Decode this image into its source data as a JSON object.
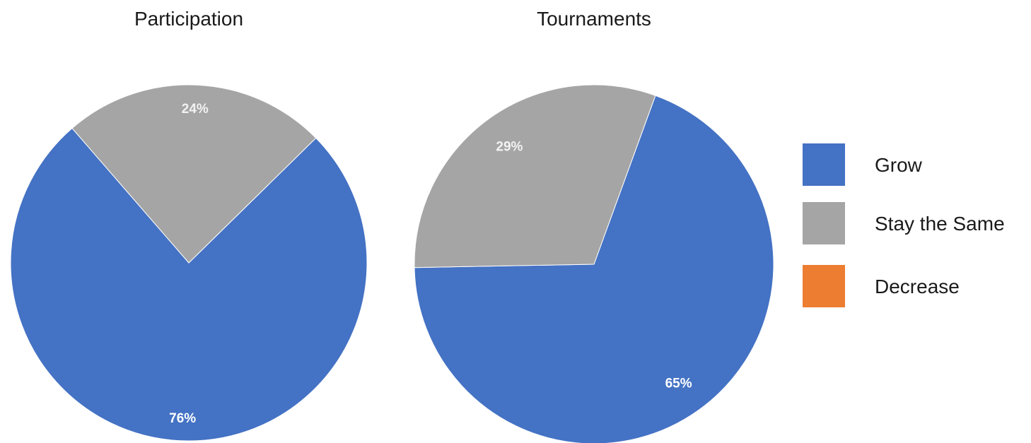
{
  "chart_data": [
    {
      "type": "pie",
      "title": "Participation",
      "categories": [
        "Grow",
        "Stay the Same",
        "Decrease"
      ],
      "values": [
        76,
        24,
        0
      ],
      "labels": [
        "76%",
        "24%",
        ""
      ]
    },
    {
      "type": "pie",
      "title": "Tournaments",
      "categories": [
        "Grow",
        "Stay the Same",
        "Decrease"
      ],
      "values": [
        65,
        29,
        0
      ],
      "labels": [
        "65%",
        "29%",
        ""
      ]
    }
  ],
  "legend": {
    "placement": "right",
    "items": [
      {
        "label": "Grow",
        "color": "#4472C4"
      },
      {
        "label": "Stay the Same",
        "color": "#A5A5A5"
      },
      {
        "label": "Decrease",
        "color": "#ED7D31"
      }
    ]
  },
  "colors": {
    "Grow": "#4472C4",
    "Stay the Same": "#A5A5A5",
    "Decrease": "#ED7D31",
    "label_on_blue": "#ffffff",
    "label_on_gray": "#F2F2F2"
  }
}
